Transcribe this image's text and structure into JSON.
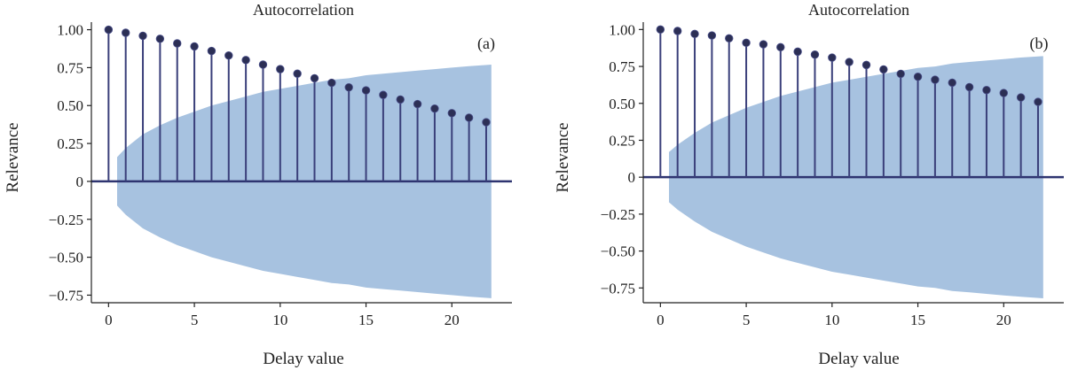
{
  "chart_data": [
    {
      "type": "stem",
      "title": "Autocorrelation",
      "panel_label": "(a)",
      "xlabel": "Delay value",
      "ylabel": "Relevance",
      "xlim": [
        -1,
        23.5
      ],
      "ylim": [
        -0.8,
        1.05
      ],
      "x_ticks": [
        0,
        5,
        10,
        15,
        20
      ],
      "y_ticks": [
        1.0,
        0.75,
        0.5,
        0.25,
        0,
        -0.25,
        -0.5,
        -0.75
      ],
      "y_tick_labels": [
        "1.00",
        "0.75",
        "0.50",
        "0.25",
        "0",
        "−0.25",
        "−0.50",
        "−0.75"
      ],
      "x": [
        0,
        1,
        2,
        3,
        4,
        5,
        6,
        7,
        8,
        9,
        10,
        11,
        12,
        13,
        14,
        15,
        16,
        17,
        18,
        19,
        20,
        21,
        22
      ],
      "values": [
        1.0,
        0.98,
        0.96,
        0.94,
        0.91,
        0.89,
        0.86,
        0.83,
        0.8,
        0.77,
        0.74,
        0.71,
        0.68,
        0.65,
        0.62,
        0.6,
        0.57,
        0.54,
        0.51,
        0.48,
        0.45,
        0.42,
        0.39
      ],
      "confidence_band": {
        "x": [
          0.5,
          1,
          2,
          3,
          4,
          5,
          6,
          7,
          8,
          9,
          10,
          11,
          12,
          13,
          14,
          15,
          16,
          17,
          18,
          19,
          20,
          21,
          22.3
        ],
        "upper": [
          0.16,
          0.22,
          0.31,
          0.37,
          0.42,
          0.46,
          0.5,
          0.53,
          0.56,
          0.59,
          0.61,
          0.63,
          0.65,
          0.67,
          0.68,
          0.7,
          0.71,
          0.72,
          0.73,
          0.74,
          0.75,
          0.76,
          0.77
        ]
      },
      "colors": {
        "stem": "#3a3f7a",
        "marker": "#2c2f55",
        "band": "#a7c2e0",
        "zero_line": "#2e3470"
      }
    },
    {
      "type": "stem",
      "title": "Autocorrelation",
      "panel_label": "(b)",
      "xlabel": "Delay value",
      "ylabel": "Relevance",
      "xlim": [
        -1,
        23.5
      ],
      "ylim": [
        -0.85,
        1.05
      ],
      "x_ticks": [
        0,
        5,
        10,
        15,
        20
      ],
      "y_ticks": [
        1.0,
        0.75,
        0.5,
        0.25,
        0,
        -0.25,
        -0.5,
        -0.75
      ],
      "y_tick_labels": [
        "1.00",
        "0.75",
        "0.50",
        "0.25",
        "0",
        "−0.25",
        "−0.50",
        "−0.75"
      ],
      "x": [
        0,
        1,
        2,
        3,
        4,
        5,
        6,
        7,
        8,
        9,
        10,
        11,
        12,
        13,
        14,
        15,
        16,
        17,
        18,
        19,
        20,
        21,
        22
      ],
      "values": [
        1.0,
        0.99,
        0.97,
        0.96,
        0.94,
        0.91,
        0.9,
        0.88,
        0.85,
        0.83,
        0.81,
        0.78,
        0.76,
        0.73,
        0.7,
        0.68,
        0.66,
        0.64,
        0.61,
        0.59,
        0.57,
        0.54,
        0.51
      ],
      "confidence_band": {
        "x": [
          0.5,
          1,
          2,
          3,
          4,
          5,
          6,
          7,
          8,
          9,
          10,
          11,
          12,
          13,
          14,
          15,
          16,
          17,
          18,
          19,
          20,
          21,
          22.3
        ],
        "upper": [
          0.17,
          0.22,
          0.3,
          0.37,
          0.42,
          0.47,
          0.51,
          0.55,
          0.58,
          0.61,
          0.64,
          0.66,
          0.68,
          0.7,
          0.72,
          0.74,
          0.75,
          0.77,
          0.78,
          0.79,
          0.8,
          0.81,
          0.82
        ]
      },
      "colors": {
        "stem": "#3a3f7a",
        "marker": "#2c2f55",
        "band": "#a7c2e0",
        "zero_line": "#2e3470"
      }
    }
  ]
}
